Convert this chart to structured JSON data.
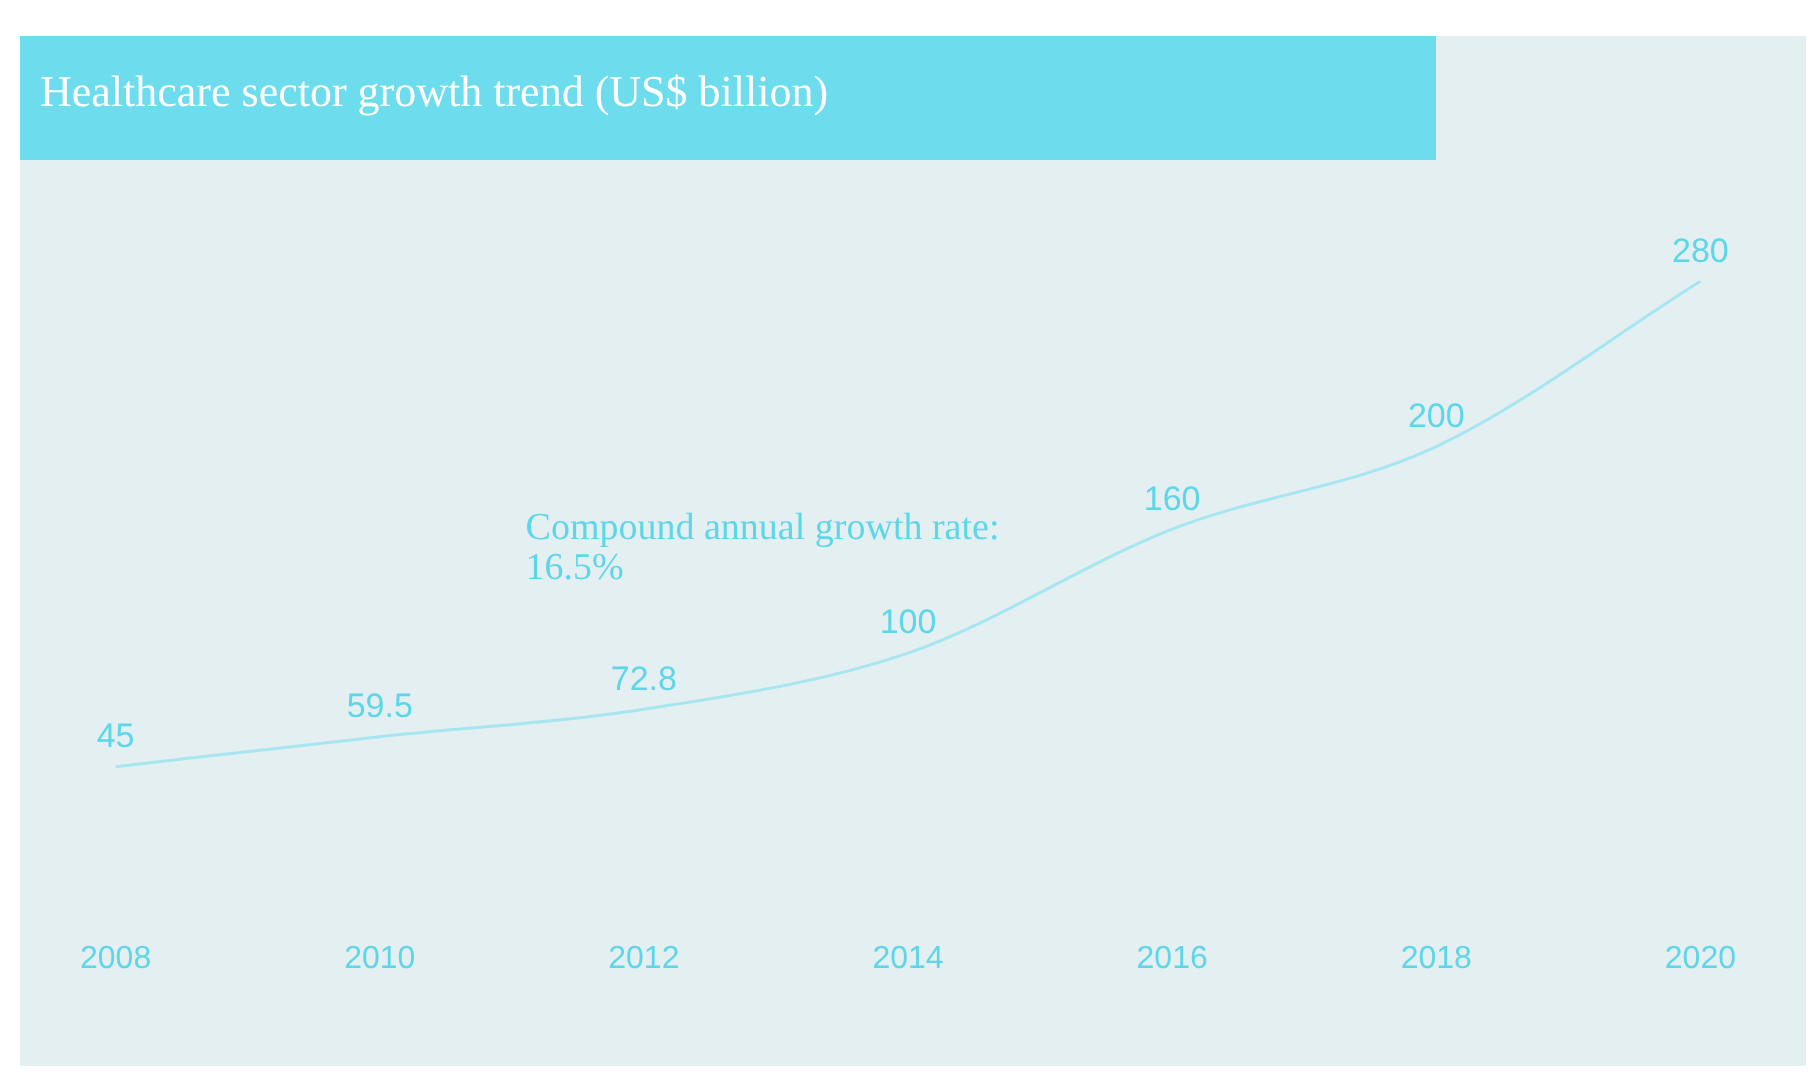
{
  "chart_data": {
    "type": "line",
    "title": "Healthcare sector growth trend (US$ billion)",
    "categories": [
      "2008",
      "2010",
      "2012",
      "2014",
      "2016",
      "2018",
      "2020"
    ],
    "series": [
      {
        "color": "#a6e6f0",
        "values": [
          45,
          59.5,
          72.8,
          100,
          160,
          200,
          280
        ]
      }
    ],
    "data_labels": true,
    "marker": "none",
    "grid": false,
    "legend": false,
    "tick_labels": "x",
    "annotations": [
      "Compound annual growth rate:\n16.5%"
    ]
  }
}
